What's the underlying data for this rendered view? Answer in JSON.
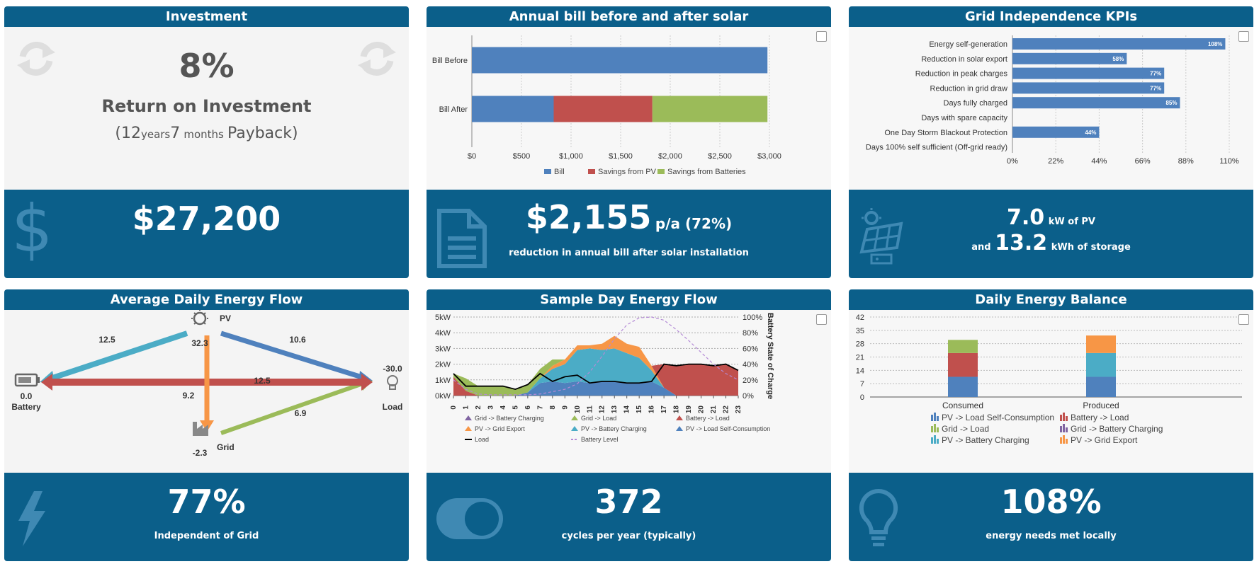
{
  "colors": {
    "header": "#0b5f8a",
    "bill": "#4f81bd",
    "pv": "#c0504d",
    "batt": "#9bbb59",
    "teal": "#4bacc6",
    "orange": "#f79646",
    "purple": "#8064a2",
    "body": "#f4f4f4"
  },
  "investment": {
    "title": "Investment",
    "roi": "8%",
    "roi_label": "Return on Investment",
    "payback": {
      "open": "(12",
      "years": "years",
      "months_num": "7",
      "months": "months",
      "close": "Payback)"
    },
    "amount": "$27,200"
  },
  "bill": {
    "title": "Annual bill before and after solar",
    "amount": "$2,155",
    "pa": "p/a (72%)",
    "caption": "reduction in annual bill after solar installation"
  },
  "kpi": {
    "title": "Grid Independence KPIs",
    "pv_value": "7.0",
    "pv_unit": "kW of PV",
    "and": "and",
    "storage_value": "13.2",
    "storage_unit": "kWh of storage"
  },
  "flow": {
    "title": "Average Daily Energy Flow",
    "nodes": {
      "pv": "PV",
      "pv_val": "32.3",
      "battery": "Battery",
      "battery_val": "0.0",
      "load": "Load",
      "load_val": "-30.0",
      "grid": "Grid",
      "grid_val": "-2.3"
    },
    "edges": {
      "pv_batt": "12.5",
      "pv_load": "10.6",
      "batt_load": "12.5",
      "pv_grid": "9.2",
      "grid_load": "6.9"
    },
    "footer_value": "77%",
    "footer_caption": "Independent of Grid"
  },
  "sample": {
    "title": "Sample Day Energy Flow",
    "footer_value": "372",
    "footer_caption": "cycles per year (typically)"
  },
  "balance": {
    "title": "Daily Energy Balance",
    "footer_value": "108%",
    "footer_caption": "energy needs met locally"
  },
  "chart_data": [
    {
      "type": "bar",
      "orientation": "horizontal",
      "stacked": true,
      "categories": [
        "Bill Before",
        "Bill After"
      ],
      "series": [
        {
          "name": "Bill",
          "color": "#4f81bd",
          "values": [
            2980,
            825
          ]
        },
        {
          "name": "Savings from PV",
          "color": "#c0504d",
          "values": [
            0,
            995
          ]
        },
        {
          "name": "Savings from Batteries",
          "color": "#9bbb59",
          "values": [
            0,
            1160
          ]
        }
      ],
      "xlim": [
        0,
        3000
      ],
      "xticks": [
        "$0",
        "$500",
        "$1,000",
        "$1,500",
        "$2,000",
        "$2,500",
        "$3,000"
      ],
      "legend": "bottom"
    },
    {
      "type": "bar",
      "orientation": "horizontal",
      "categories": [
        "Energy self-generation",
        "Reduction in solar export",
        "Reduction in peak charges",
        "Reduction in grid draw",
        "Days fully charged",
        "Days with spare capacity",
        "One Day Storm Blackout Protection",
        "Days 100% self sufficient (Off-grid ready)"
      ],
      "values": [
        108,
        58,
        77,
        77,
        85,
        0,
        44,
        0
      ],
      "labels": [
        "108%",
        "58%",
        "77%",
        "77%",
        "85%",
        "",
        "44%",
        ""
      ],
      "xlim": [
        0,
        110
      ],
      "xticks": [
        "0%",
        "22%",
        "44%",
        "66%",
        "88%",
        "110%"
      ]
    },
    {
      "type": "area",
      "x": [
        0,
        1,
        2,
        3,
        4,
        5,
        6,
        7,
        8,
        9,
        10,
        11,
        12,
        13,
        14,
        15,
        16,
        17,
        18,
        19,
        20,
        21,
        22,
        23
      ],
      "xticks": [
        "0",
        "1",
        "2",
        "3",
        "4",
        "5",
        "6",
        "7",
        "8",
        "9",
        "10",
        "11",
        "12",
        "13",
        "14",
        "15",
        "16",
        "17",
        "18",
        "19",
        "20",
        "21",
        "22",
        "23"
      ],
      "yticks_left": [
        "0kW",
        "1kW",
        "2kW",
        "3kW",
        "4kW",
        "5kW"
      ],
      "yticks_right": [
        "0%",
        "20%",
        "40%",
        "60%",
        "80%",
        "100%"
      ],
      "ylabel_right": "Battery State of Charge",
      "ylim": [
        0,
        5
      ],
      "series": [
        {
          "name": "Grid -> Battery Charging",
          "color": "#8064a2",
          "values": [
            0,
            0,
            0,
            0,
            0,
            0,
            0,
            0,
            0,
            0,
            0,
            0,
            0,
            0,
            0,
            0,
            0,
            0,
            0,
            0,
            0,
            0,
            0,
            0
          ]
        },
        {
          "name": "Grid -> Load",
          "color": "#9bbb59",
          "values": [
            0.2,
            0.8,
            0.6,
            0.6,
            0.6,
            0.4,
            0.5,
            0.6,
            0.4,
            0,
            0,
            0,
            0,
            0,
            0,
            0,
            0,
            0,
            0,
            0,
            0,
            0,
            0,
            0
          ]
        },
        {
          "name": "Battery -> Load",
          "color": "#c0504d",
          "values": [
            1.2,
            0.3,
            0,
            0,
            0,
            0,
            0,
            0,
            0,
            0,
            0,
            0,
            0,
            0,
            0,
            0,
            0,
            1.5,
            1.9,
            2.0,
            2.0,
            1.9,
            2.0,
            1.6
          ]
        },
        {
          "name": "PV -> Grid Export",
          "color": "#f79646",
          "values": [
            0,
            0,
            0,
            0,
            0,
            0,
            0,
            0,
            0.2,
            0.3,
            0.3,
            0.2,
            0.4,
            0.8,
            0.6,
            0.7,
            0.3,
            0,
            0,
            0,
            0,
            0,
            0,
            0
          ]
        },
        {
          "name": "PV -> Battery Charging",
          "color": "#4bacc6",
          "values": [
            0,
            0,
            0,
            0,
            0,
            0,
            0,
            0.3,
            0.8,
            1.2,
            2.0,
            2.2,
            2.0,
            2.1,
            1.9,
            1.6,
            0.7,
            0,
            0,
            0,
            0,
            0,
            0,
            0
          ]
        },
        {
          "name": "PV -> Load Self-Consumption",
          "color": "#4f81bd",
          "values": [
            0,
            0,
            0,
            0,
            0,
            0,
            0.2,
            0.8,
            0.9,
            0.8,
            0.9,
            0.8,
            0.9,
            0.9,
            0.8,
            0.8,
            0.9,
            0.5,
            0,
            0,
            0,
            0,
            0,
            0
          ]
        },
        {
          "name": "Load",
          "color": "#000000",
          "values": [
            1.4,
            0.6,
            0.6,
            0.6,
            0.6,
            0.4,
            0.7,
            1.4,
            0.9,
            1.2,
            1.3,
            0.8,
            0.9,
            0.9,
            0.8,
            0.8,
            0.9,
            2.0,
            1.9,
            2.0,
            2.0,
            1.9,
            2.0,
            1.6
          ]
        },
        {
          "name": "Battery Level",
          "color": "#b48ad6",
          "axis": "right",
          "values": [
            20,
            8,
            2,
            1,
            1,
            1,
            1,
            2,
            5,
            8,
            15,
            30,
            50,
            72,
            90,
            99,
            100,
            96,
            84,
            70,
            55,
            40,
            28,
            20
          ]
        }
      ],
      "legend": "bottom"
    },
    {
      "type": "bar",
      "stacked": true,
      "categories": [
        "Consumed",
        "Produced"
      ],
      "ylim": [
        0,
        42
      ],
      "yticks": [
        "0",
        "7",
        "14",
        "21",
        "28",
        "35",
        "42"
      ],
      "series": [
        {
          "name": "PV -> Load Self-Consumption",
          "color": "#4f81bd",
          "values": [
            10.6,
            10.6
          ]
        },
        {
          "name": "Battery -> Load",
          "color": "#c0504d",
          "values": [
            12.5,
            0
          ]
        },
        {
          "name": "Grid -> Load",
          "color": "#9bbb59",
          "values": [
            6.9,
            0
          ]
        },
        {
          "name": "Grid -> Battery Charging",
          "color": "#8064a2",
          "values": [
            0,
            0
          ]
        },
        {
          "name": "PV -> Battery Charging",
          "color": "#4bacc6",
          "values": [
            0,
            12.5
          ]
        },
        {
          "name": "PV -> Grid Export",
          "color": "#f79646",
          "values": [
            0,
            9.2
          ]
        }
      ],
      "legend": "bottom"
    }
  ]
}
